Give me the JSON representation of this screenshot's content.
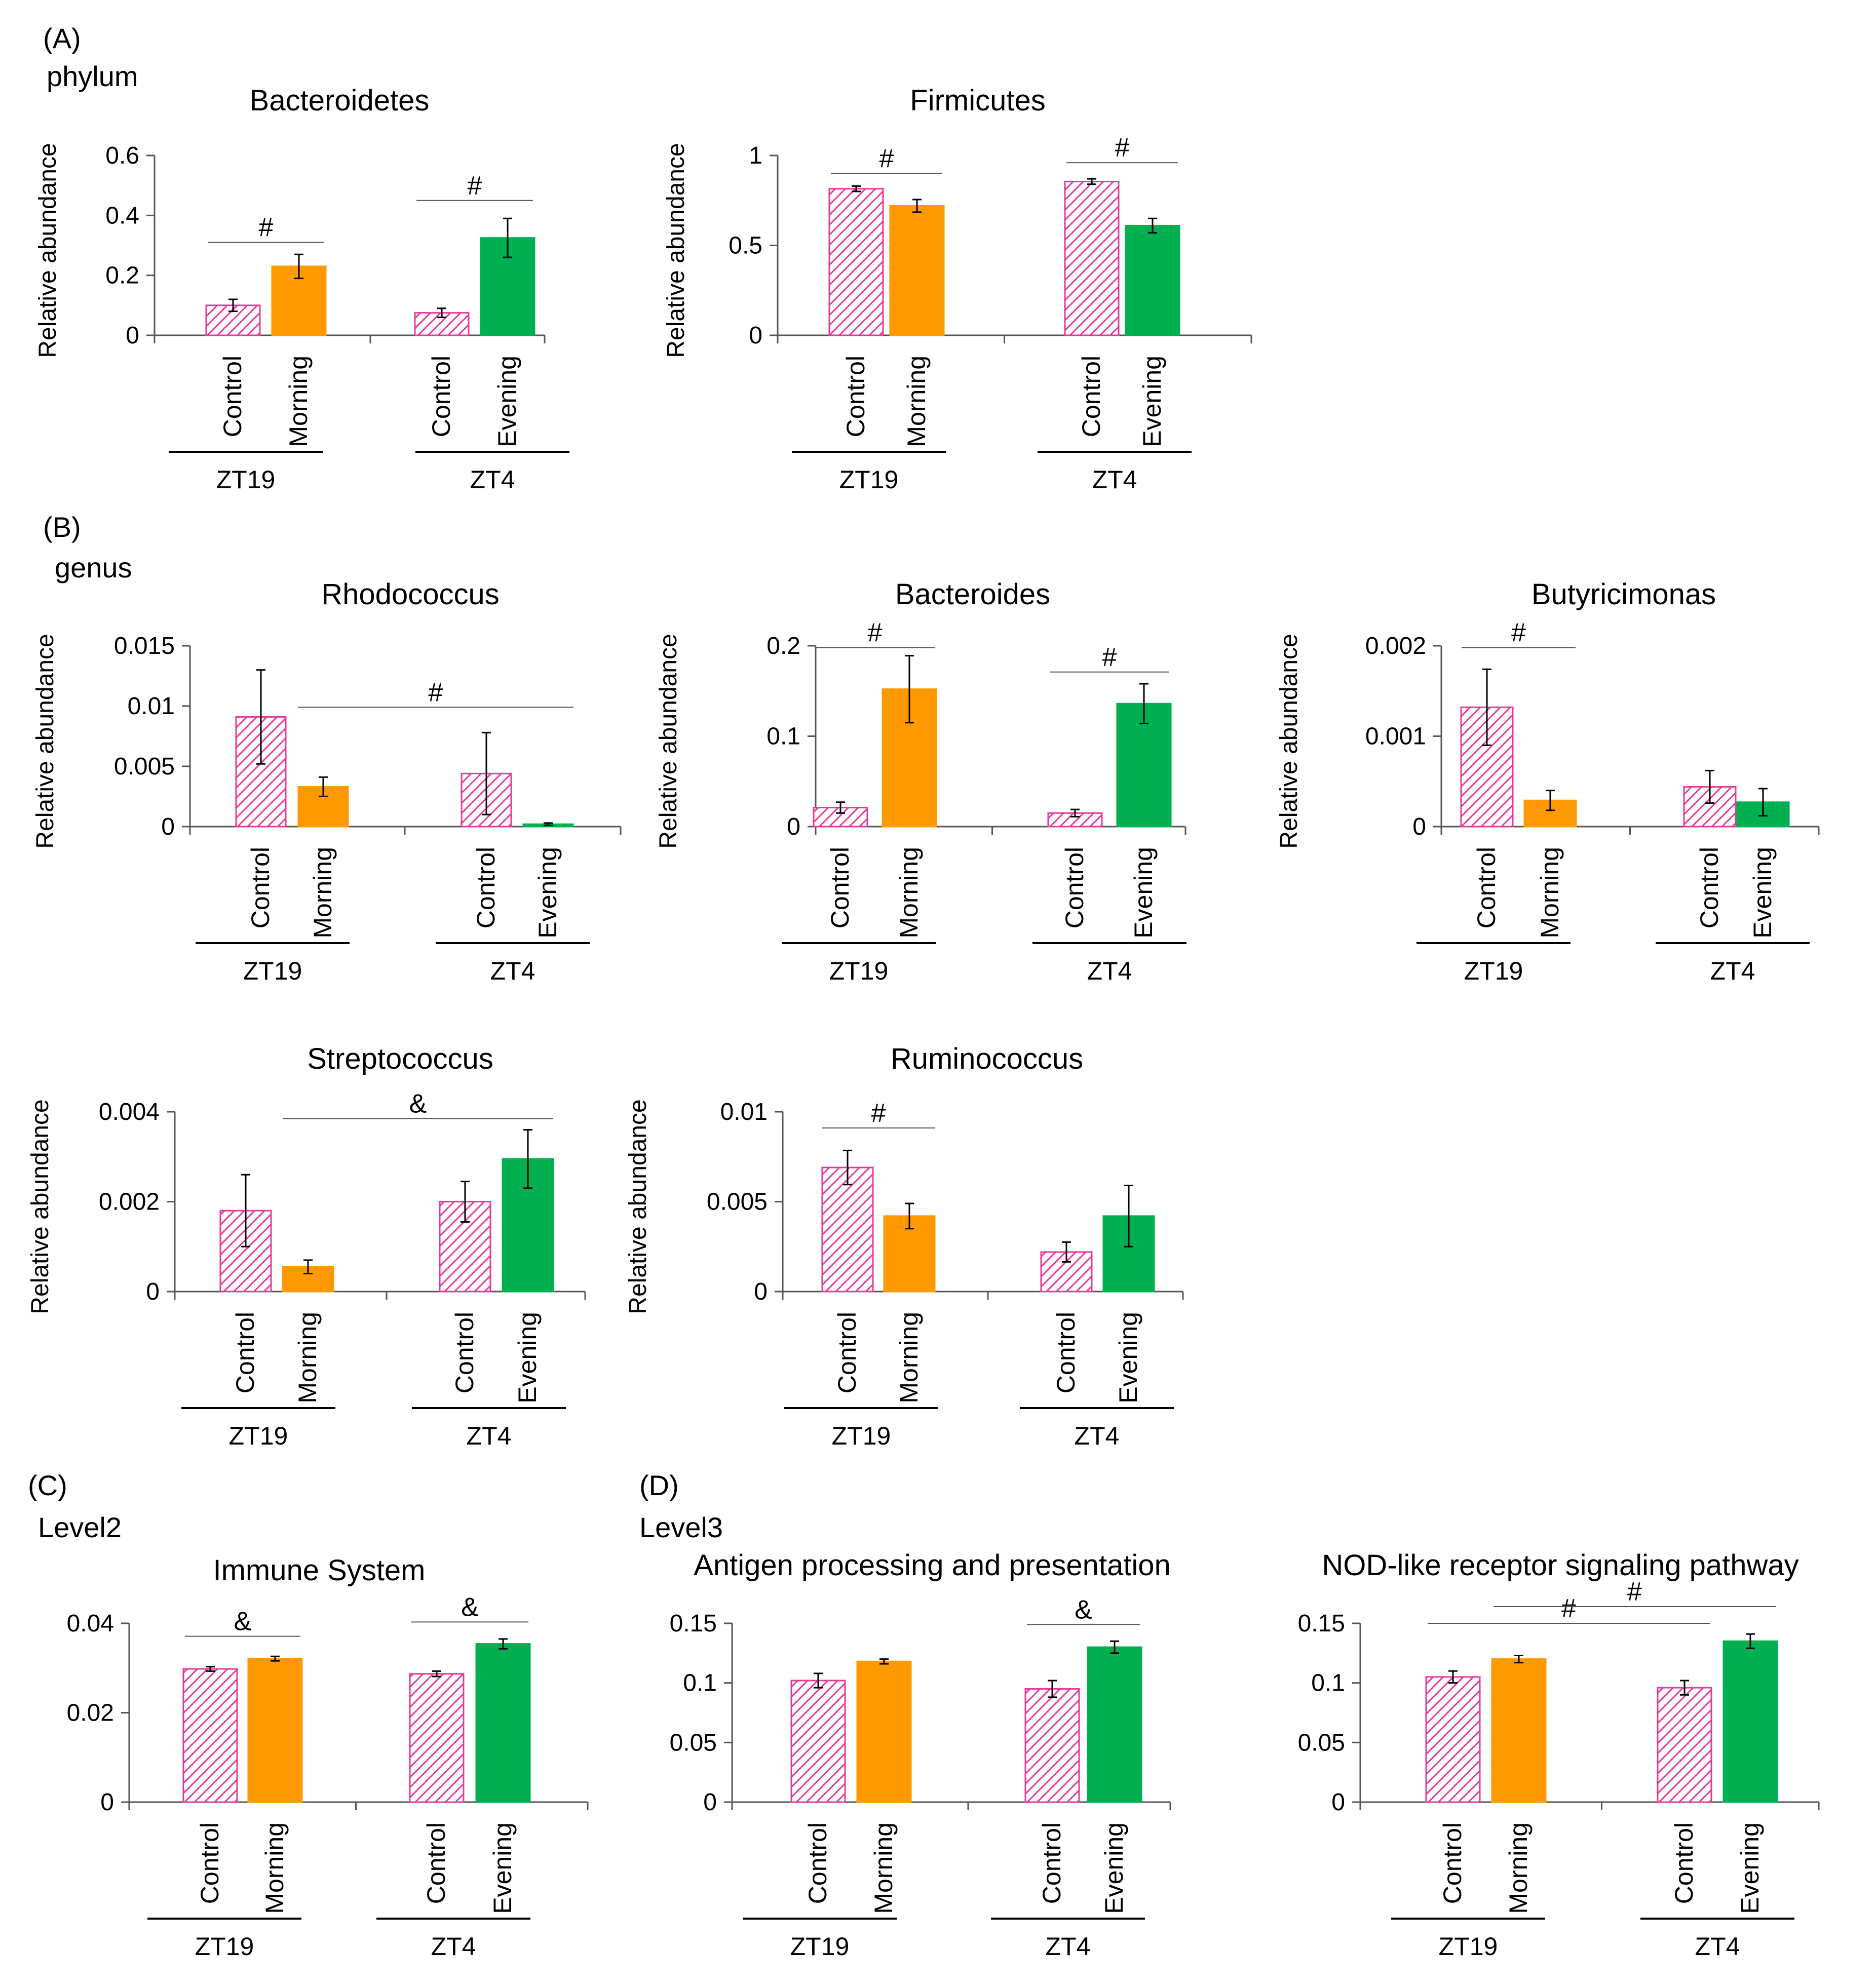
{
  "section_labels": [
    {
      "id": "A",
      "letter": "(A)",
      "level": "phylum"
    },
    {
      "id": "B",
      "letter": "(B)",
      "level": "genus"
    },
    {
      "id": "C",
      "letter": "(C)",
      "level": "Level2"
    },
    {
      "id": "D",
      "letter": "(D)",
      "level": "Level3"
    }
  ],
  "colors": {
    "control": "#e8399a",
    "morning": "#ff9900",
    "evening": "#00b050"
  },
  "chart_data": [
    {
      "type": "bar",
      "section": "A",
      "title": "Bacteroidetes",
      "ylabel": "Relative abundance",
      "ylim": [
        0,
        0.6
      ],
      "yticks": [
        "0",
        "0.2",
        "0.4",
        "0.6"
      ],
      "ytick_values": [
        0,
        0.2,
        0.4,
        0.6
      ],
      "groups": [
        {
          "label": "ZT19",
          "bars": [
            {
              "category": "Control",
              "value": 0.1,
              "error": 0.02
            },
            {
              "category": "Morning",
              "value": 0.23,
              "error": 0.04
            }
          ]
        },
        {
          "label": "ZT4",
          "bars": [
            {
              "category": "Control",
              "value": 0.075,
              "error": 0.015
            },
            {
              "category": "Evening",
              "value": 0.325,
              "error": 0.065
            }
          ]
        }
      ],
      "annotations": [
        {
          "symbol": "#",
          "from": [
            0,
            0
          ],
          "to": [
            0,
            1
          ],
          "level": 0.31
        },
        {
          "symbol": "#",
          "from": [
            1,
            0
          ],
          "to": [
            1,
            1
          ],
          "level": 0.45
        }
      ]
    },
    {
      "type": "bar",
      "section": "A",
      "title": "Firmicutes",
      "ylabel": "Relative abundance",
      "ylim": [
        0,
        1
      ],
      "yticks": [
        "0",
        "0.5",
        "1"
      ],
      "ytick_values": [
        0,
        0.5,
        1
      ],
      "groups": [
        {
          "label": "ZT19",
          "bars": [
            {
              "category": "Control",
              "value": 0.815,
              "error": 0.015
            },
            {
              "category": "Morning",
              "value": 0.72,
              "error": 0.035
            }
          ]
        },
        {
          "label": "ZT4",
          "bars": [
            {
              "category": "Control",
              "value": 0.855,
              "error": 0.015
            },
            {
              "category": "Evening",
              "value": 0.61,
              "error": 0.04
            }
          ]
        }
      ],
      "annotations": [
        {
          "symbol": "#",
          "from": [
            0,
            0
          ],
          "to": [
            0,
            1
          ],
          "level": 0.9
        },
        {
          "symbol": "#",
          "from": [
            1,
            0
          ],
          "to": [
            1,
            1
          ],
          "level": 0.96
        }
      ]
    },
    {
      "type": "bar",
      "section": "B",
      "title": "Rhodococcus",
      "ylabel": "Relative abundance",
      "ylim": [
        0,
        0.015
      ],
      "yticks": [
        "0",
        "0.005",
        "0.01",
        "0.015"
      ],
      "ytick_values": [
        0,
        0.005,
        0.01,
        0.015
      ],
      "groups": [
        {
          "label": "ZT19",
          "bars": [
            {
              "category": "Control",
              "value": 0.0091,
              "error": 0.0039
            },
            {
              "category": "Morning",
              "value": 0.0033,
              "error": 0.0008
            }
          ]
        },
        {
          "label": "ZT4",
          "bars": [
            {
              "category": "Control",
              "value": 0.0044,
              "error": 0.0034
            },
            {
              "category": "Evening",
              "value": 0.0002,
              "error": 0.0001
            }
          ]
        }
      ],
      "annotations": [
        {
          "symbol": "#",
          "from": [
            0,
            1
          ],
          "to": [
            1,
            1
          ],
          "level": 0.0099
        }
      ]
    },
    {
      "type": "bar",
      "section": "B",
      "title": "Bacteroides",
      "ylabel": "Relative abundance",
      "ylim": [
        0,
        0.2
      ],
      "yticks": [
        "0",
        "0.1",
        "0.2"
      ],
      "ytick_values": [
        0,
        0.1,
        0.2
      ],
      "groups": [
        {
          "label": "ZT19",
          "bars": [
            {
              "category": "Control",
              "value": 0.021,
              "error": 0.006
            },
            {
              "category": "Morning",
              "value": 0.152,
              "error": 0.037
            }
          ]
        },
        {
          "label": "ZT4",
          "bars": [
            {
              "category": "Control",
              "value": 0.015,
              "error": 0.004
            },
            {
              "category": "Evening",
              "value": 0.136,
              "error": 0.022
            }
          ]
        }
      ],
      "annotations": [
        {
          "symbol": "#",
          "from": [
            0,
            0
          ],
          "to": [
            0,
            1
          ],
          "level": 0.198
        },
        {
          "symbol": "#",
          "from": [
            1,
            0
          ],
          "to": [
            1,
            1
          ],
          "level": 0.171
        }
      ]
    },
    {
      "type": "bar",
      "section": "B",
      "title": "Butyricimonas",
      "ylabel": "Relative abundance",
      "ylim": [
        0,
        0.002
      ],
      "yticks": [
        "0",
        "0.001",
        "0.002"
      ],
      "ytick_values": [
        0,
        0.001,
        0.002
      ],
      "groups": [
        {
          "label": "ZT19",
          "bars": [
            {
              "category": "Control",
              "value": 0.00132,
              "error": 0.00042
            },
            {
              "category": "Morning",
              "value": 0.00029,
              "error": 0.00011
            }
          ]
        },
        {
          "label": "ZT4",
          "bars": [
            {
              "category": "Control",
              "value": 0.00044,
              "error": 0.00018
            },
            {
              "category": "Evening",
              "value": 0.00027,
              "error": 0.00015
            }
          ]
        }
      ],
      "annotations": [
        {
          "symbol": "#",
          "from": [
            0,
            0
          ],
          "to": [
            0,
            1
          ],
          "level": 0.00198
        }
      ]
    },
    {
      "type": "bar",
      "section": "B",
      "title": "Streptococcus",
      "ylabel": "Relative abundance",
      "ylim": [
        0,
        0.004
      ],
      "yticks": [
        "0",
        "0.002",
        "0.004"
      ],
      "ytick_values": [
        0,
        0.002,
        0.004
      ],
      "groups": [
        {
          "label": "ZT19",
          "bars": [
            {
              "category": "Control",
              "value": 0.0018,
              "error": 0.0008
            },
            {
              "category": "Morning",
              "value": 0.00055,
              "error": 0.00015
            }
          ]
        },
        {
          "label": "ZT4",
          "bars": [
            {
              "category": "Control",
              "value": 0.002,
              "error": 0.00045
            },
            {
              "category": "Evening",
              "value": 0.00295,
              "error": 0.00065
            }
          ]
        }
      ],
      "annotations": [
        {
          "symbol": "&",
          "from": [
            0,
            1
          ],
          "to": [
            1,
            1
          ],
          "level": 0.00385
        }
      ]
    },
    {
      "type": "bar",
      "section": "B",
      "title": "Ruminococcus",
      "ylabel": "Relative abundance",
      "ylim": [
        0,
        0.01
      ],
      "yticks": [
        "0",
        "0.005",
        "0.01"
      ],
      "ytick_values": [
        0,
        0.005,
        0.01
      ],
      "groups": [
        {
          "label": "ZT19",
          "bars": [
            {
              "category": "Control",
              "value": 0.0069,
              "error": 0.00095
            },
            {
              "category": "Morning",
              "value": 0.0042,
              "error": 0.0007
            }
          ]
        },
        {
          "label": "ZT4",
          "bars": [
            {
              "category": "Control",
              "value": 0.0022,
              "error": 0.00055
            },
            {
              "category": "Evening",
              "value": 0.0042,
              "error": 0.0017
            }
          ]
        }
      ],
      "annotations": [
        {
          "symbol": "#",
          "from": [
            0,
            0
          ],
          "to": [
            0,
            1
          ],
          "level": 0.0091
        }
      ]
    },
    {
      "type": "bar",
      "section": "C",
      "title": "Immune System",
      "ylabel": "",
      "ylim": [
        0,
        0.04
      ],
      "yticks": [
        "0",
        "0.02",
        "0.04"
      ],
      "ytick_values": [
        0,
        0.02,
        0.04
      ],
      "groups": [
        {
          "label": "ZT19",
          "bars": [
            {
              "category": "Control",
              "value": 0.0298,
              "error": 0.0005
            },
            {
              "category": "Morning",
              "value": 0.0321,
              "error": 0.0005
            }
          ]
        },
        {
          "label": "ZT4",
          "bars": [
            {
              "category": "Control",
              "value": 0.0287,
              "error": 0.0006
            },
            {
              "category": "Evening",
              "value": 0.0354,
              "error": 0.0011
            }
          ]
        }
      ],
      "annotations": [
        {
          "symbol": "&",
          "from": [
            0,
            0
          ],
          "to": [
            0,
            1
          ],
          "level": 0.0371
        },
        {
          "symbol": "&",
          "from": [
            1,
            0
          ],
          "to": [
            1,
            1
          ],
          "level": 0.0403
        }
      ]
    },
    {
      "type": "bar",
      "section": "D",
      "title": "Antigen processing and presentation",
      "ylabel": "",
      "ylim": [
        0,
        0.15
      ],
      "yticks": [
        "0",
        "0.05",
        "0.1",
        "0.15"
      ],
      "ytick_values": [
        0,
        0.05,
        0.1,
        0.15
      ],
      "groups": [
        {
          "label": "ZT19",
          "bars": [
            {
              "category": "Control",
              "value": 0.102,
              "error": 0.006
            },
            {
              "category": "Morning",
              "value": 0.118,
              "error": 0.002
            }
          ]
        },
        {
          "label": "ZT4",
          "bars": [
            {
              "category": "Control",
              "value": 0.095,
              "error": 0.007
            },
            {
              "category": "Evening",
              "value": 0.13,
              "error": 0.005
            }
          ]
        }
      ],
      "annotations": [
        {
          "symbol": "&",
          "from": [
            1,
            0
          ],
          "to": [
            1,
            1
          ],
          "level": 0.149
        }
      ]
    },
    {
      "type": "bar",
      "section": "D",
      "title": "NOD-like receptor signaling pathway",
      "ylabel": "",
      "ylim": [
        0,
        0.15
      ],
      "yticks": [
        "0",
        "0.05",
        "0.1",
        "0.15"
      ],
      "ytick_values": [
        0,
        0.05,
        0.1,
        0.15
      ],
      "groups": [
        {
          "label": "ZT19",
          "bars": [
            {
              "category": "Control",
              "value": 0.105,
              "error": 0.005
            },
            {
              "category": "Morning",
              "value": 0.12,
              "error": 0.003
            }
          ]
        },
        {
          "label": "ZT4",
          "bars": [
            {
              "category": "Control",
              "value": 0.096,
              "error": 0.006
            },
            {
              "category": "Evening",
              "value": 0.135,
              "error": 0.006
            }
          ]
        }
      ],
      "annotations": [
        {
          "symbol": "#",
          "from": [
            0,
            0
          ],
          "to": [
            1,
            0
          ],
          "level": 0.15
        },
        {
          "symbol": "#",
          "from": [
            0,
            1
          ],
          "to": [
            1,
            1
          ],
          "level": 0.164
        }
      ]
    }
  ]
}
